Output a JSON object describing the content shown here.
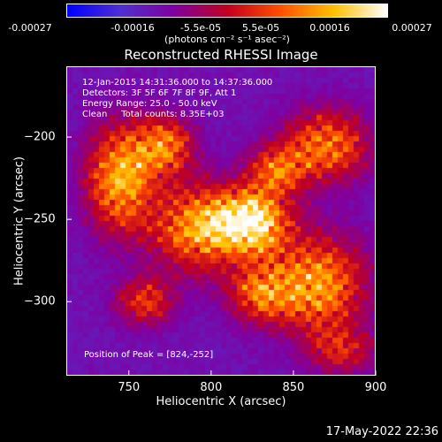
{
  "chart_data": {
    "type": "heatmap",
    "title": "Reconstructed RHESSI Image",
    "xlabel": "Heliocentric X (arcsec)",
    "ylabel": "Heliocentric Y (arcsec)",
    "xlim": [
      712,
      900
    ],
    "ylim": [
      -345,
      -157
    ],
    "x_ticks": [
      750,
      800,
      850,
      900
    ],
    "y_ticks": [
      -200,
      -250,
      -300
    ],
    "colorbar": {
      "ticks": [
        "-0.00027",
        "-0.00016",
        "-5.5e-05",
        "5.5e-05",
        "0.00016",
        "0.00027"
      ],
      "tick_values": [
        -0.00027,
        -0.00016,
        -5.5e-05,
        5.5e-05,
        0.00016,
        0.00027
      ],
      "unit": "(photons cm⁻² s⁻¹ asec⁻²)",
      "colors": [
        "#0000ff",
        "#5030d0",
        "#8000a0",
        "#c00020",
        "#ff5000",
        "#ffc000",
        "#ffffff"
      ]
    },
    "peak": [
      824,
      -252
    ],
    "sources": [
      {
        "x": 824,
        "y": -252,
        "sx": 16,
        "sy": 14,
        "amp": 1.0
      },
      {
        "x": 745,
        "y": -225,
        "sx": 14,
        "sy": 22,
        "amp": 0.75
      },
      {
        "x": 772,
        "y": -205,
        "sx": 12,
        "sy": 12,
        "amp": 0.6
      },
      {
        "x": 790,
        "y": -255,
        "sx": 18,
        "sy": 18,
        "amp": 0.65
      },
      {
        "x": 870,
        "y": -205,
        "sx": 18,
        "sy": 15,
        "amp": 0.6
      },
      {
        "x": 865,
        "y": -290,
        "sx": 20,
        "sy": 20,
        "amp": 0.7
      },
      {
        "x": 830,
        "y": -295,
        "sx": 14,
        "sy": 12,
        "amp": 0.5
      },
      {
        "x": 760,
        "y": -300,
        "sx": 12,
        "sy": 10,
        "amp": 0.45
      },
      {
        "x": 880,
        "y": -330,
        "sx": 14,
        "sy": 10,
        "amp": 0.35
      },
      {
        "x": 840,
        "y": -220,
        "sx": 12,
        "sy": 10,
        "amp": 0.5
      }
    ]
  },
  "info": {
    "time_range": "12-Jan-2015 14:31:36.000 to 14:37:36.000",
    "detectors": "Detectors: 3F 5F 6F 7F 8F 9F, Att 1",
    "energy": "Energy Range: 25.0 - 50.0 keV",
    "method": "Clean     Total counts: 8.35E+03",
    "peak": "Position of Peak = [824,-252]"
  },
  "timestamp": "17-May-2022 22:36"
}
